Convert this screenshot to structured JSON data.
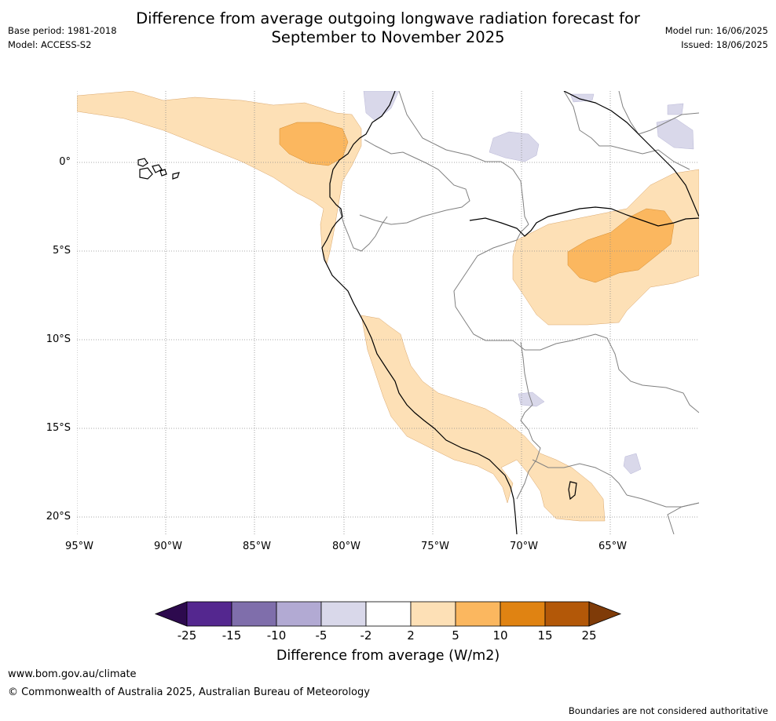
{
  "title": {
    "line1": "Difference from average outgoing longwave radiation forecast for",
    "line2": "September to November 2025"
  },
  "meta_left": {
    "base_period": "Base period: 1981-2018",
    "model": "Model: ACCESS-S2"
  },
  "meta_right": {
    "model_run": "Model run: 16/06/2025",
    "issued": "Issued: 18/06/2025"
  },
  "map": {
    "lat_ticks": [
      "0°",
      "5°S",
      "10°S",
      "15°S",
      "20°S"
    ],
    "lon_ticks": [
      "95°W",
      "90°W",
      "85°W",
      "80°W",
      "75°W",
      "70°W",
      "65°W"
    ],
    "extent": {
      "lon_min": -95,
      "lon_max": -60,
      "lat_min": -21,
      "lat_max": 4
    },
    "gridlines": true
  },
  "colorbar": {
    "title": "Difference from average (W/m2)",
    "tick_labels": [
      "-25",
      "-15",
      "-10",
      "-5",
      "-2",
      "2",
      "5",
      "10",
      "15",
      "25"
    ],
    "colors": {
      "below_min": "#2d0a4e",
      "c1": "#54278f",
      "c2": "#7f6eab",
      "c3": "#b2aad3",
      "c4": "#d9d8ea",
      "c5": "#ffffff",
      "c6": "#fde0b6",
      "c7": "#fbb75f",
      "c8": "#e08312",
      "c9": "#b35808",
      "above_max": "#7f3b08"
    }
  },
  "footer": {
    "url": "www.bom.gov.au/climate",
    "copyright": "© Commonwealth of Australia 2025, Australian Bureau of Meteorology",
    "note": "Boundaries are not considered authoritative"
  }
}
